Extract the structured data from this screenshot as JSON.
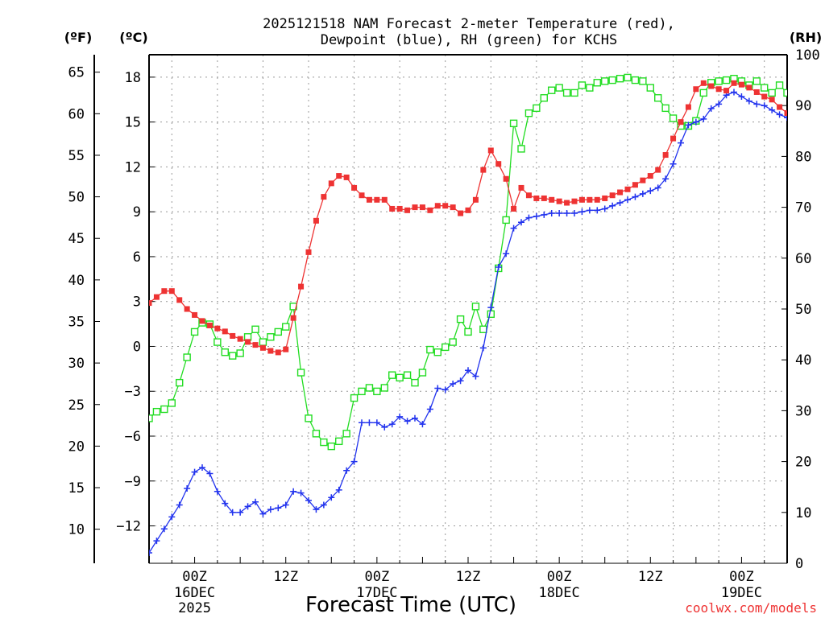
{
  "chart_data": {
    "type": "line",
    "title": [
      "2025121518 NAM Forecast 2-meter Temperature (red),",
      "Dewpoint (blue), RH (green) for KCHS"
    ],
    "xlabel": "Forecast Time (UTC)",
    "units": {
      "fahrenheit": "(ºF)",
      "celsius": "(ºC)",
      "rh": "(RH)"
    },
    "watermark": "coolwx.com/models",
    "colors": {
      "temperature": "#ee3333",
      "dewpoint": "#2233ee",
      "rh": "#22dd22",
      "grid": "#999999"
    },
    "x_hours_range": [
      -6,
      78
    ],
    "x_ticks": [
      {
        "hour": 0,
        "label": "00Z",
        "date": "16DEC",
        "year": "2025"
      },
      {
        "hour": 12,
        "label": "12Z",
        "date": "",
        "year": ""
      },
      {
        "hour": 24,
        "label": "00Z",
        "date": "17DEC",
        "year": ""
      },
      {
        "hour": 36,
        "label": "12Z",
        "date": "",
        "year": ""
      },
      {
        "hour": 48,
        "label": "00Z",
        "date": "18DEC",
        "year": ""
      },
      {
        "hour": 60,
        "label": "12Z",
        "date": "",
        "year": ""
      },
      {
        "hour": 72,
        "label": "00Z",
        "date": "19DEC",
        "year": ""
      }
    ],
    "y_celsius": {
      "range": [
        -14.5,
        19.5
      ],
      "ticks": [
        "−12",
        "−9",
        "−6",
        "−3",
        "0",
        "3",
        "6",
        "9",
        "12",
        "15",
        "18"
      ]
    },
    "y_fahrenheit": {
      "ticks": [
        "10",
        "15",
        "20",
        "25",
        "30",
        "35",
        "40",
        "45",
        "50",
        "55",
        "60",
        "65"
      ]
    },
    "y_rh": {
      "range": [
        0,
        100
      ],
      "ticks": [
        "0",
        "10",
        "20",
        "30",
        "40",
        "50",
        "60",
        "70",
        "80",
        "90",
        "100"
      ]
    },
    "series": [
      {
        "name": "Temperature (°C)",
        "axis": "celsius",
        "marker": "filled-square",
        "x": [
          -6,
          -5,
          -4,
          -3,
          -2,
          -1,
          0,
          1,
          2,
          3,
          4,
          5,
          6,
          7,
          8,
          9,
          10,
          11,
          12,
          13,
          14,
          15,
          16,
          17,
          18,
          19,
          20,
          21,
          22,
          23,
          24,
          25,
          26,
          27,
          28,
          29,
          30,
          31,
          32,
          33,
          34,
          35,
          36,
          37,
          38,
          39,
          40,
          41,
          42,
          43,
          44,
          45,
          46,
          47,
          48,
          49,
          50,
          51,
          52,
          53,
          54,
          55,
          56,
          57,
          58,
          59,
          60,
          61,
          62,
          63,
          64,
          65,
          66,
          67,
          68,
          69,
          70,
          71,
          72,
          73,
          74,
          75,
          76,
          77,
          78
        ],
        "values": [
          2.9,
          3.3,
          3.7,
          3.7,
          3.1,
          2.5,
          2.1,
          1.7,
          1.4,
          1.2,
          1.0,
          0.7,
          0.5,
          0.3,
          0.1,
          -0.1,
          -0.3,
          -0.4,
          -0.2,
          1.9,
          4.0,
          6.3,
          8.4,
          10.0,
          10.9,
          11.4,
          11.3,
          10.6,
          10.1,
          9.8,
          9.8,
          9.8,
          9.2,
          9.2,
          9.1,
          9.3,
          9.3,
          9.1,
          9.4,
          9.4,
          9.3,
          8.9,
          9.1,
          9.8,
          11.8,
          13.1,
          12.2,
          11.2,
          9.2,
          10.6,
          10.1,
          9.9,
          9.9,
          9.8,
          9.7,
          9.6,
          9.7,
          9.8,
          9.8,
          9.8,
          9.9,
          10.1,
          10.3,
          10.5,
          10.8,
          11.1,
          11.4,
          11.8,
          12.8,
          13.9,
          15.0,
          16.0,
          17.2,
          17.6,
          17.4,
          17.2,
          17.1,
          17.6,
          17.5,
          17.3,
          17.0,
          16.7,
          16.5,
          16.0,
          15.6
        ]
      },
      {
        "name": "Dewpoint (°C)",
        "axis": "celsius",
        "marker": "plus",
        "x": [
          -6,
          -5,
          -4,
          -3,
          -2,
          -1,
          0,
          1,
          2,
          3,
          4,
          5,
          6,
          7,
          8,
          9,
          10,
          11,
          12,
          13,
          14,
          15,
          16,
          17,
          18,
          19,
          20,
          21,
          22,
          23,
          24,
          25,
          26,
          27,
          28,
          29,
          30,
          31,
          32,
          33,
          34,
          35,
          36,
          37,
          38,
          39,
          40,
          41,
          42,
          43,
          44,
          45,
          46,
          47,
          48,
          49,
          50,
          51,
          52,
          53,
          54,
          55,
          56,
          57,
          58,
          59,
          60,
          61,
          62,
          63,
          64,
          65,
          66,
          67,
          68,
          69,
          70,
          71,
          72,
          73,
          74,
          75,
          76,
          77,
          78
        ],
        "values": [
          -13.8,
          -13.0,
          -12.2,
          -11.4,
          -10.6,
          -9.5,
          -8.4,
          -8.1,
          -8.5,
          -9.7,
          -10.5,
          -11.1,
          -11.1,
          -10.7,
          -10.4,
          -11.2,
          -10.9,
          -10.8,
          -10.6,
          -9.7,
          -9.8,
          -10.3,
          -10.9,
          -10.6,
          -10.1,
          -9.6,
          -8.3,
          -7.7,
          -5.1,
          -5.1,
          -5.1,
          -5.4,
          -5.2,
          -4.7,
          -5.0,
          -4.8,
          -5.2,
          -4.2,
          -2.8,
          -2.9,
          -2.5,
          -2.3,
          -1.6,
          -2.0,
          -0.1,
          2.6,
          5.3,
          6.2,
          7.9,
          8.3,
          8.6,
          8.7,
          8.8,
          8.9,
          8.9,
          8.9,
          8.9,
          9.0,
          9.1,
          9.1,
          9.2,
          9.4,
          9.6,
          9.8,
          10.0,
          10.2,
          10.4,
          10.6,
          11.2,
          12.2,
          13.6,
          14.8,
          15.0,
          15.2,
          15.9,
          16.2,
          16.8,
          17.0,
          16.7,
          16.4,
          16.2,
          16.1,
          15.8,
          15.5,
          15.3
        ]
      },
      {
        "name": "Relative Humidity (%)",
        "axis": "rh",
        "marker": "open-square",
        "x": [
          -6,
          -5,
          -4,
          -3,
          -2,
          -1,
          0,
          1,
          2,
          3,
          4,
          5,
          6,
          7,
          8,
          9,
          10,
          11,
          12,
          13,
          14,
          15,
          16,
          17,
          18,
          19,
          20,
          21,
          22,
          23,
          24,
          25,
          26,
          27,
          28,
          29,
          30,
          31,
          32,
          33,
          34,
          35,
          36,
          37,
          38,
          39,
          40,
          41,
          42,
          43,
          44,
          45,
          46,
          47,
          48,
          49,
          50,
          51,
          52,
          53,
          54,
          55,
          56,
          57,
          58,
          59,
          60,
          61,
          62,
          63,
          64,
          65,
          66,
          67,
          68,
          69,
          70,
          71,
          72,
          73,
          74,
          75,
          76,
          77,
          78
        ],
        "values": [
          28.5,
          29.8,
          30.3,
          31.5,
          35.5,
          40.5,
          45.5,
          47.3,
          47.0,
          43.5,
          41.5,
          40.8,
          41.3,
          44.5,
          46.0,
          43.5,
          44.5,
          45.5,
          46.5,
          50.5,
          37.5,
          28.5,
          25.5,
          23.8,
          23.0,
          24.0,
          25.5,
          32.5,
          33.8,
          34.5,
          33.8,
          34.5,
          37.0,
          36.5,
          37.0,
          35.5,
          37.5,
          42.0,
          41.5,
          42.5,
          43.5,
          48.0,
          45.5,
          50.5,
          46.0,
          49.0,
          58.0,
          67.5,
          86.5,
          81.5,
          88.5,
          89.5,
          91.5,
          93.0,
          93.5,
          92.5,
          92.5,
          94.0,
          93.5,
          94.5,
          94.8,
          95.0,
          95.3,
          95.5,
          95.0,
          94.8,
          93.5,
          91.5,
          89.5,
          87.5,
          86.0,
          86.0,
          87.0,
          92.5,
          94.5,
          94.8,
          95.0,
          95.3,
          94.8,
          94.0,
          94.8,
          93.5,
          92.5,
          94.0,
          92.5
        ]
      }
    ]
  }
}
